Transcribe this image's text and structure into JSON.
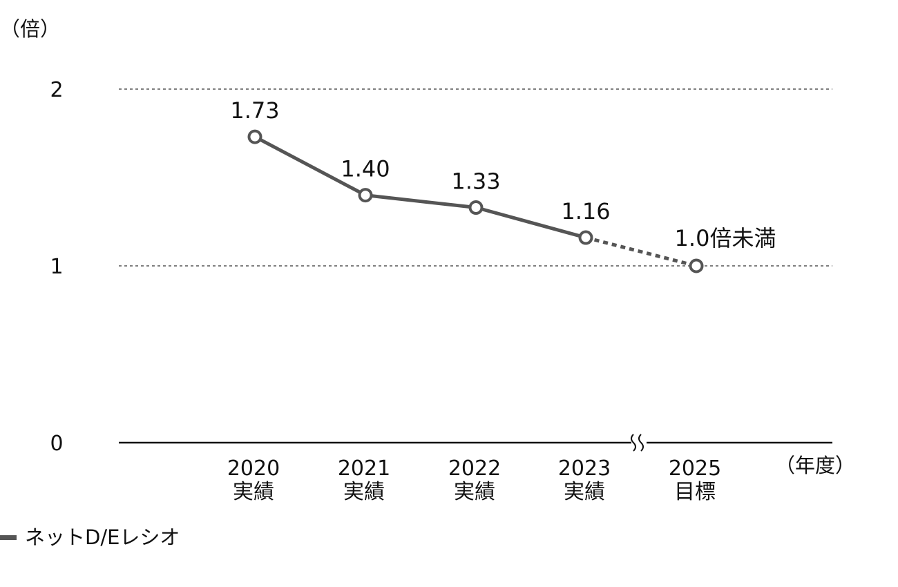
{
  "chart_data": {
    "type": "line",
    "y_unit_label": "（倍）",
    "x_unit_label": "（年度）",
    "ylim": [
      0,
      2
    ],
    "y_ticks": [
      {
        "value": 0,
        "label": "0"
      },
      {
        "value": 1,
        "label": "1"
      },
      {
        "value": 2,
        "label": "2"
      }
    ],
    "grid": "dashed at 1 and 2",
    "axis_break": "between 2023 and 2025",
    "categories": [
      {
        "year": "2020",
        "kind": "実績"
      },
      {
        "year": "2021",
        "kind": "実績"
      },
      {
        "year": "2022",
        "kind": "実績"
      },
      {
        "year": "2023",
        "kind": "実績"
      },
      {
        "year": "2025",
        "kind": "目標"
      }
    ],
    "series": [
      {
        "name": "ネットD/Eレシオ",
        "values": [
          1.73,
          1.4,
          1.33,
          1.16,
          1.0
        ],
        "labels": [
          "1.73",
          "1.40",
          "1.33",
          "1.16",
          "1.0倍未満"
        ],
        "projection_from_index": 3,
        "color": "#555555"
      }
    ],
    "legend": {
      "label": "ネットD/Eレシオ",
      "placement": "bottom-left"
    }
  }
}
